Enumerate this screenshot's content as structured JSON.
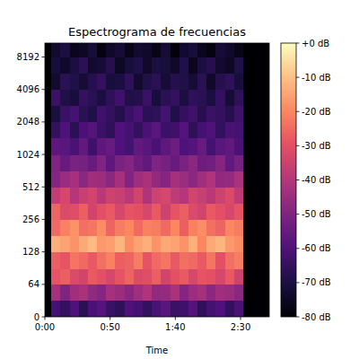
{
  "chart_data": {
    "type": "heatmap",
    "title": "Espectrograma de frecuencias",
    "xlabel": "Time",
    "x": [
      0,
      5,
      12,
      19,
      26,
      33,
      40,
      47,
      54,
      61,
      68,
      75,
      82,
      89,
      96,
      103,
      110,
      117,
      124,
      131,
      138,
      145,
      152,
      172
    ],
    "y": [
      0,
      32,
      64,
      90,
      128,
      181,
      256,
      362,
      512,
      724,
      1024,
      1448,
      2048,
      2896,
      4096,
      5793,
      8192,
      11025
    ],
    "cells": [
      [
        -80,
        -62,
        -65,
        -60,
        -67,
        -61,
        -59,
        -64,
        -66,
        -60,
        -62,
        -65,
        -61,
        -58,
        -64,
        -63,
        -59,
        -66,
        -62,
        -60,
        -65,
        -61,
        -80
      ],
      [
        -80,
        -43,
        -50,
        -44,
        -42,
        -47,
        -49,
        -43,
        -45,
        -48,
        -44,
        -41,
        -47,
        -46,
        -42,
        -49,
        -45,
        -43,
        -48,
        -44,
        -45,
        -48,
        -80
      ],
      [
        -80,
        -29,
        -27,
        -32,
        -34,
        -28,
        -30,
        -33,
        -29,
        -26,
        -32,
        -31,
        -27,
        -34,
        -30,
        -28,
        -33,
        -29,
        -30,
        -33,
        -28,
        -35,
        -80
      ],
      [
        -80,
        -27,
        -29,
        -23,
        -25,
        -28,
        -24,
        -21,
        -27,
        -26,
        -22,
        -29,
        -25,
        -23,
        -28,
        -24,
        -25,
        -28,
        -23,
        -30,
        -24,
        -22,
        -80
      ],
      [
        -80,
        -13,
        -15,
        -18,
        -14,
        -11,
        -17,
        -16,
        -12,
        -19,
        -15,
        -13,
        -18,
        -14,
        -15,
        -18,
        -13,
        -20,
        -14,
        -12,
        -17,
        -19,
        -80
      ],
      [
        -80,
        -25,
        -21,
        -18,
        -24,
        -23,
        -19,
        -26,
        -22,
        -20,
        -25,
        -21,
        -22,
        -25,
        -20,
        -27,
        -21,
        -19,
        -24,
        -26,
        -20,
        -22,
        -80
      ],
      [
        -80,
        -26,
        -32,
        -31,
        -27,
        -34,
        -30,
        -28,
        -33,
        -29,
        -30,
        -33,
        -28,
        -35,
        -29,
        -27,
        -32,
        -34,
        -28,
        -30,
        -33,
        -29,
        -80
      ],
      [
        -80,
        -37,
        -33,
        -40,
        -36,
        -34,
        -39,
        -35,
        -36,
        -39,
        -34,
        -41,
        -35,
        -33,
        -38,
        -40,
        -34,
        -36,
        -39,
        -35,
        -32,
        -38,
        -80
      ],
      [
        -80,
        -49,
        -45,
        -43,
        -48,
        -44,
        -45,
        -48,
        -43,
        -50,
        -44,
        -42,
        -47,
        -49,
        -43,
        -45,
        -48,
        -44,
        -41,
        -47,
        -46,
        -42,
        -80
      ],
      [
        -80,
        -50,
        -55,
        -51,
        -52,
        -55,
        -50,
        -57,
        -51,
        -49,
        -54,
        -56,
        -50,
        -52,
        -55,
        -51,
        -48,
        -54,
        -53,
        -49,
        -56,
        -52,
        -80
      ],
      [
        -80,
        -57,
        -58,
        -61,
        -56,
        -63,
        -57,
        -55,
        -60,
        -62,
        -56,
        -58,
        -61,
        -57,
        -54,
        -60,
        -59,
        -55,
        -62,
        -58,
        -56,
        -61,
        -80
      ],
      [
        -80,
        -65,
        -60,
        -67,
        -61,
        -59,
        -64,
        -66,
        -60,
        -62,
        -65,
        -61,
        -58,
        -64,
        -63,
        -59,
        -66,
        -62,
        -60,
        -65,
        -61,
        -62,
        -80
      ],
      [
        -80,
        -70,
        -64,
        -62,
        -67,
        -69,
        -63,
        -65,
        -68,
        -64,
        -61,
        -67,
        -66,
        -62,
        -69,
        -65,
        -63,
        -68,
        -64,
        -65,
        -68,
        -63,
        -80
      ],
      [
        -80,
        -64,
        -69,
        -71,
        -65,
        -67,
        -70,
        -66,
        -63,
        -69,
        -68,
        -64,
        -71,
        -67,
        -65,
        -70,
        -66,
        -67,
        -70,
        -65,
        -72,
        -66,
        -80
      ],
      [
        -80,
        -73,
        -67,
        -69,
        -72,
        -68,
        -65,
        -71,
        -70,
        -66,
        -73,
        -69,
        -67,
        -72,
        -68,
        -69,
        -72,
        -67,
        -74,
        -68,
        -66,
        -71,
        -80
      ],
      [
        -80,
        -71,
        -74,
        -70,
        -67,
        -73,
        -72,
        -68,
        -75,
        -71,
        -69,
        -74,
        -70,
        -71,
        -74,
        -69,
        -76,
        -70,
        -68,
        -73,
        -75,
        -69,
        -80
      ],
      [
        -80,
        -73,
        -70,
        -76,
        -75,
        -71,
        -78,
        -74,
        -72,
        -77,
        -73,
        -74,
        -77,
        -72,
        -79,
        -73,
        -71,
        -76,
        -78,
        -72,
        -74,
        -77,
        -80
      ]
    ],
    "xlim": [
      0,
      172
    ],
    "ylim": [
      0,
      11025
    ],
    "xticks": [
      {
        "value": 0,
        "label": "0:00"
      },
      {
        "value": 50,
        "label": "0:50"
      },
      {
        "value": 100,
        "label": "1:40"
      },
      {
        "value": 150,
        "label": "2:30"
      }
    ],
    "yticks": [
      0,
      64,
      128,
      256,
      512,
      1024,
      2048,
      4096,
      8192
    ],
    "log": "y",
    "colorbar": {
      "range": [
        -80,
        0
      ],
      "ticks": [
        {
          "value": 0,
          "label": "+0 dB"
        },
        {
          "value": -10,
          "label": "-10 dB"
        },
        {
          "value": -20,
          "label": "-20 dB"
        },
        {
          "value": -30,
          "label": "-30 dB"
        },
        {
          "value": -40,
          "label": "-40 dB"
        },
        {
          "value": -50,
          "label": "-50 dB"
        },
        {
          "value": -60,
          "label": "-60 dB"
        },
        {
          "value": -70,
          "label": "-70 dB"
        },
        {
          "value": -80,
          "label": "-80 dB"
        }
      ]
    }
  }
}
